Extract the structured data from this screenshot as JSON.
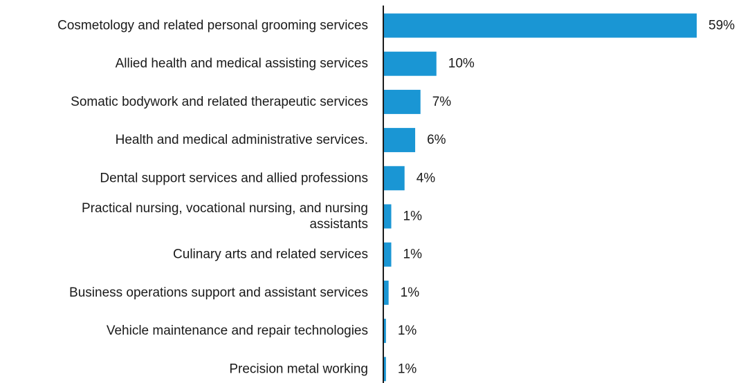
{
  "chart_data": {
    "type": "bar",
    "orientation": "horizontal",
    "title": "",
    "xlabel": "",
    "ylabel": "",
    "categories": [
      "Cosmetology and related personal grooming services",
      "Allied health and medical assisting services",
      "Somatic bodywork and related therapeutic services",
      "Health and medical administrative services.",
      "Dental support services and allied professions",
      "Practical nursing, vocational nursing, and nursing assistants",
      "Culinary arts and related services",
      "Business operations support and assistant services",
      "Vehicle maintenance and repair technologies",
      "Precision metal working"
    ],
    "values": [
      59,
      10,
      7,
      6,
      4,
      1.5,
      1.5,
      1,
      0.5,
      0.5
    ],
    "data_labels": [
      "59%",
      "10%",
      "7%",
      "6%",
      "4%",
      "1%",
      "1%",
      "1%",
      "1%",
      "1%"
    ],
    "xlim": [
      0,
      59
    ],
    "grid": false,
    "legend": "none",
    "bar_color": "#1a96d4",
    "axis_color": "#1a1a1a"
  }
}
